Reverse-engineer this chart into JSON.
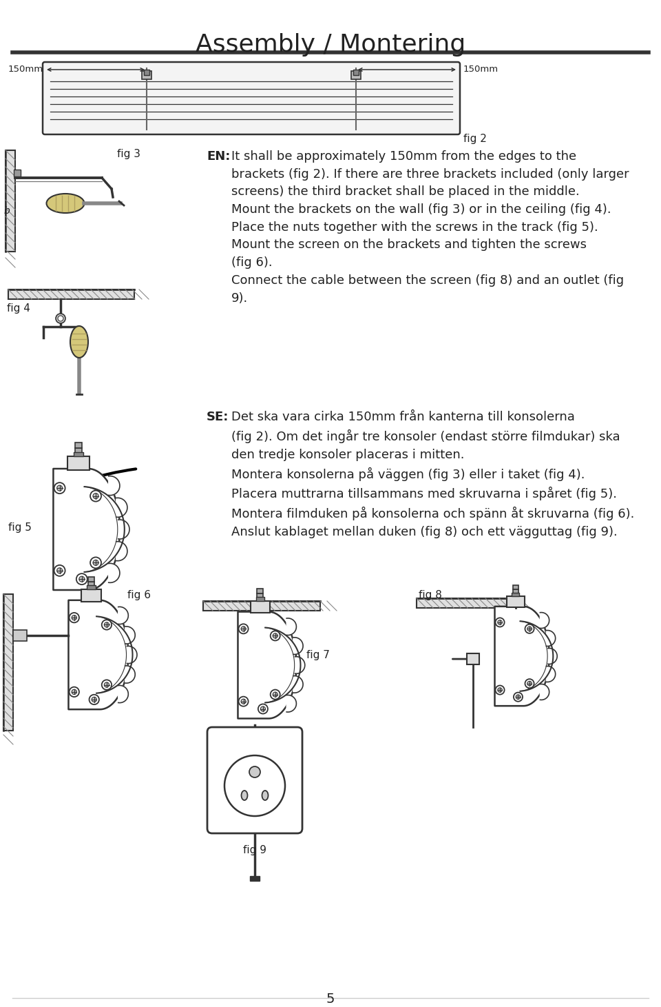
{
  "title": "Assembly / Montering",
  "background_color": "#ffffff",
  "text_color": "#222222",
  "line_color": "#333333",
  "page_number": "5",
  "dim_label_left": "150mm",
  "dim_label_right": "150mm",
  "en_bold": "EN:",
  "en_text": "It shall be approximately 150mm from the edges to the\nbrackets (fig 2). If there are three brackets included (only larger\nscreens) the third bracket shall be placed in the middle.\nMount the brackets on the wall (fig 3) or in the ceiling (fig 4).\nPlace the nuts together with the screws in the track (fig 5).\nMount the screen on the brackets and tighten the screws\n(fig 6).\nConnect the cable between the screen (fig 8) and an outlet (fig\n9).",
  "se_bold": "SE:",
  "se_text": "Det ska vara cirka 150mm från kanterna till konsolerna\n(fig 2). Om det ingår tre konsoler (endast större filmdukar) ska\nden tredje konsoler placeras i mitten.\nMontera konsolerna på väggen (fig 3) eller i taket (fig 4).\nPlacera muttrarna tillsammans med skruvarna i spåret (fig 5).\nMontera filmduken på konsolerna och spänn åt skruvarna (fig 6).\nAnslut kablaget mellan duken (fig 8) och ett vägguttag (fig 9).",
  "fig2_label": "fig 2",
  "fig3_label": "fig 3",
  "fig4_label": "fig 4",
  "fig5_label": "fig 5",
  "fig6_label": "fig 6",
  "fig7_label": "fig 7",
  "fig8_label": "fig 8",
  "fig9_label": "fig 9",
  "hatch_color": "#888888",
  "light_gray": "#e8e8e8",
  "mid_gray": "#aaaaaa"
}
